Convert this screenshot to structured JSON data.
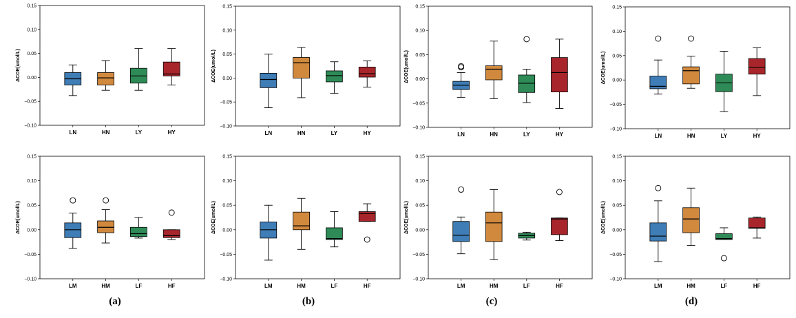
{
  "colors": {
    "blue": "#3f7db6",
    "orange": "#d1893e",
    "green": "#2e8b57",
    "red": "#a8262b"
  },
  "captions": [
    "(a)",
    "(b)",
    "(c)",
    "(d)"
  ],
  "chart_data": [
    {
      "type": "box",
      "panel": "(a)",
      "row": "top",
      "ylabel": "ΔCOE(umol/L)",
      "ylim": [
        -0.1,
        0.15
      ],
      "yticks": [
        "0.15",
        "0.10",
        "0.05",
        "0.00",
        "−0.05",
        "−0.10"
      ],
      "categories": [
        "LN",
        "HN",
        "LY",
        "HY"
      ],
      "series_colors": [
        "blue",
        "orange",
        "green",
        "red"
      ],
      "boxes": [
        {
          "whislo": -0.038,
          "q1": -0.016,
          "med": -0.003,
          "q3": 0.01,
          "whishi": 0.026,
          "fliers": []
        },
        {
          "whislo": -0.027,
          "q1": -0.016,
          "med": -0.001,
          "q3": 0.01,
          "whishi": 0.035,
          "fliers": []
        },
        {
          "whislo": -0.027,
          "q1": -0.012,
          "med": 0.003,
          "q3": 0.019,
          "whishi": 0.06,
          "fliers": []
        },
        {
          "whislo": -0.016,
          "q1": 0.003,
          "med": 0.007,
          "q3": 0.032,
          "whishi": 0.06,
          "fliers": []
        }
      ]
    },
    {
      "type": "box",
      "panel": "(b)",
      "row": "top",
      "ylabel": "ΔCOE(umol/L)",
      "ylim": [
        -0.1,
        0.15
      ],
      "yticks": [
        "0.15",
        "0.10",
        "0.05",
        "0.00",
        "−0.05",
        "−0.10"
      ],
      "categories": [
        "LN",
        "HN",
        "LY",
        "HY"
      ],
      "series_colors": [
        "blue",
        "orange",
        "green",
        "red"
      ],
      "boxes": [
        {
          "whislo": -0.062,
          "q1": -0.02,
          "med": -0.003,
          "q3": 0.01,
          "whishi": 0.05,
          "fliers": []
        },
        {
          "whislo": -0.041,
          "q1": 0.0,
          "med": 0.032,
          "q3": 0.043,
          "whishi": 0.064,
          "fliers": []
        },
        {
          "whislo": -0.032,
          "q1": -0.008,
          "med": 0.005,
          "q3": 0.015,
          "whishi": 0.034,
          "fliers": []
        },
        {
          "whislo": -0.019,
          "q1": 0.002,
          "med": 0.009,
          "q3": 0.023,
          "whishi": 0.036,
          "fliers": []
        }
      ]
    },
    {
      "type": "box",
      "panel": "(c)",
      "row": "top",
      "ylabel": "ΔCOE(umol/L)",
      "ylim": [
        -0.1,
        0.15
      ],
      "yticks": [
        "0.15",
        "0.10",
        "0.05",
        "0.00",
        "−0.05",
        "−0.10"
      ],
      "categories": [
        "LN",
        "HN",
        "LY",
        "HY"
      ],
      "series_colors": [
        "blue",
        "orange",
        "green",
        "red"
      ],
      "boxes": [
        {
          "whislo": -0.038,
          "q1": -0.022,
          "med": -0.013,
          "q3": -0.005,
          "whishi": 0.013,
          "fliers": [
            0.026,
            0.024
          ]
        },
        {
          "whislo": -0.041,
          "q1": -0.002,
          "med": 0.02,
          "q3": 0.027,
          "whishi": 0.078,
          "fliers": []
        },
        {
          "whislo": -0.049,
          "q1": -0.028,
          "med": -0.009,
          "q3": 0.008,
          "whishi": 0.02,
          "fliers": [
            0.082
          ]
        },
        {
          "whislo": -0.061,
          "q1": -0.027,
          "med": 0.013,
          "q3": 0.044,
          "whishi": 0.082,
          "fliers": []
        }
      ]
    },
    {
      "type": "box",
      "panel": "(d)",
      "row": "top",
      "ylabel": "ΔCOE(umol/L)",
      "ylim": [
        -0.1,
        0.15
      ],
      "yticks": [
        "0.15",
        "0.10",
        "0.05",
        "0.00",
        "−0.05",
        "−0.10"
      ],
      "categories": [
        "LN",
        "HN",
        "LY",
        "HY"
      ],
      "series_colors": [
        "blue",
        "orange",
        "green",
        "red"
      ],
      "boxes": [
        {
          "whislo": -0.029,
          "q1": -0.018,
          "med": -0.013,
          "q3": 0.008,
          "whishi": 0.041,
          "fliers": [
            0.085
          ]
        },
        {
          "whislo": -0.017,
          "q1": -0.008,
          "med": 0.019,
          "q3": 0.027,
          "whishi": 0.049,
          "fliers": [
            0.085
          ]
        },
        {
          "whislo": -0.065,
          "q1": -0.024,
          "med": -0.006,
          "q3": 0.012,
          "whishi": 0.059,
          "fliers": []
        },
        {
          "whislo": -0.032,
          "q1": 0.012,
          "med": 0.026,
          "q3": 0.044,
          "whishi": 0.066,
          "fliers": []
        }
      ]
    },
    {
      "type": "box",
      "panel": "(a)",
      "row": "bottom",
      "ylabel": "ΔCOE(umol/L)",
      "ylim": [
        -0.1,
        0.15
      ],
      "yticks": [
        "0.15",
        "0.10",
        "0.05",
        "0.00",
        "−0.05",
        "−0.10"
      ],
      "categories": [
        "LM",
        "HM",
        "LF",
        "HF"
      ],
      "series_colors": [
        "blue",
        "orange",
        "green",
        "red"
      ],
      "boxes": [
        {
          "whislo": -0.038,
          "q1": -0.016,
          "med": 0.0,
          "q3": 0.014,
          "whishi": 0.034,
          "fliers": [
            0.06
          ]
        },
        {
          "whislo": -0.027,
          "q1": -0.006,
          "med": 0.005,
          "q3": 0.018,
          "whishi": 0.041,
          "fliers": [
            0.06
          ]
        },
        {
          "whislo": -0.017,
          "q1": -0.014,
          "med": -0.008,
          "q3": 0.005,
          "whishi": 0.025,
          "fliers": []
        },
        {
          "whislo": -0.02,
          "q1": -0.016,
          "med": -0.012,
          "q3": 0.0,
          "whishi": 0.0,
          "fliers": [
            0.035
          ]
        }
      ]
    },
    {
      "type": "box",
      "panel": "(b)",
      "row": "bottom",
      "ylabel": "ΔCOE(umol/L)",
      "ylim": [
        -0.1,
        0.15
      ],
      "yticks": [
        "0.15",
        "0.10",
        "0.05",
        "0.00",
        "−0.05",
        "−0.10"
      ],
      "categories": [
        "LM",
        "HM",
        "LF",
        "HF"
      ],
      "series_colors": [
        "blue",
        "orange",
        "green",
        "red"
      ],
      "boxes": [
        {
          "whislo": -0.062,
          "q1": -0.017,
          "med": 0.0,
          "q3": 0.016,
          "whishi": 0.05,
          "fliers": []
        },
        {
          "whislo": -0.04,
          "q1": 0.0,
          "med": 0.008,
          "q3": 0.036,
          "whishi": 0.064,
          "fliers": []
        },
        {
          "whislo": -0.035,
          "q1": -0.02,
          "med": -0.018,
          "q3": 0.004,
          "whishi": 0.037,
          "fliers": []
        },
        {
          "whislo": 0.017,
          "q1": 0.017,
          "med": 0.033,
          "q3": 0.037,
          "whishi": 0.053,
          "fliers": [
            -0.02
          ]
        }
      ]
    },
    {
      "type": "box",
      "panel": "(c)",
      "row": "bottom",
      "ylabel": "ΔCOE(umol/L)",
      "ylim": [
        -0.1,
        0.15
      ],
      "yticks": [
        "0.15",
        "0.10",
        "0.05",
        "0.00",
        "−0.05",
        "−0.10"
      ],
      "categories": [
        "LM",
        "HM",
        "LF",
        "HF"
      ],
      "series_colors": [
        "blue",
        "orange",
        "green",
        "red"
      ],
      "boxes": [
        {
          "whislo": -0.049,
          "q1": -0.024,
          "med": -0.011,
          "q3": 0.017,
          "whishi": 0.026,
          "fliers": [
            0.082
          ]
        },
        {
          "whislo": -0.061,
          "q1": -0.024,
          "med": 0.014,
          "q3": 0.036,
          "whishi": 0.082,
          "fliers": []
        },
        {
          "whislo": -0.021,
          "q1": -0.017,
          "med": -0.012,
          "q3": -0.007,
          "whishi": -0.005,
          "fliers": []
        },
        {
          "whislo": -0.022,
          "q1": -0.01,
          "med": 0.022,
          "q3": 0.024,
          "whishi": 0.024,
          "fliers": [
            0.077
          ]
        }
      ]
    },
    {
      "type": "box",
      "panel": "(d)",
      "row": "bottom",
      "ylabel": "ΔCOE(umol/L)",
      "ylim": [
        -0.1,
        0.15
      ],
      "yticks": [
        "0.15",
        "0.10",
        "0.05",
        "0.00",
        "−0.05",
        "−0.10"
      ],
      "categories": [
        "LM",
        "HM",
        "LF",
        "HF"
      ],
      "series_colors": [
        "blue",
        "orange",
        "green",
        "red"
      ],
      "boxes": [
        {
          "whislo": -0.065,
          "q1": -0.023,
          "med": -0.013,
          "q3": 0.014,
          "whishi": 0.059,
          "fliers": [
            0.085
          ]
        },
        {
          "whislo": -0.032,
          "q1": -0.006,
          "med": 0.022,
          "q3": 0.045,
          "whishi": 0.085,
          "fliers": []
        },
        {
          "whislo": -0.02,
          "q1": -0.02,
          "med": -0.018,
          "q3": -0.008,
          "whishi": 0.004,
          "fliers": [
            -0.058
          ]
        },
        {
          "whislo": -0.017,
          "q1": 0.003,
          "med": 0.004,
          "q3": 0.024,
          "whishi": 0.026,
          "fliers": []
        }
      ]
    }
  ]
}
